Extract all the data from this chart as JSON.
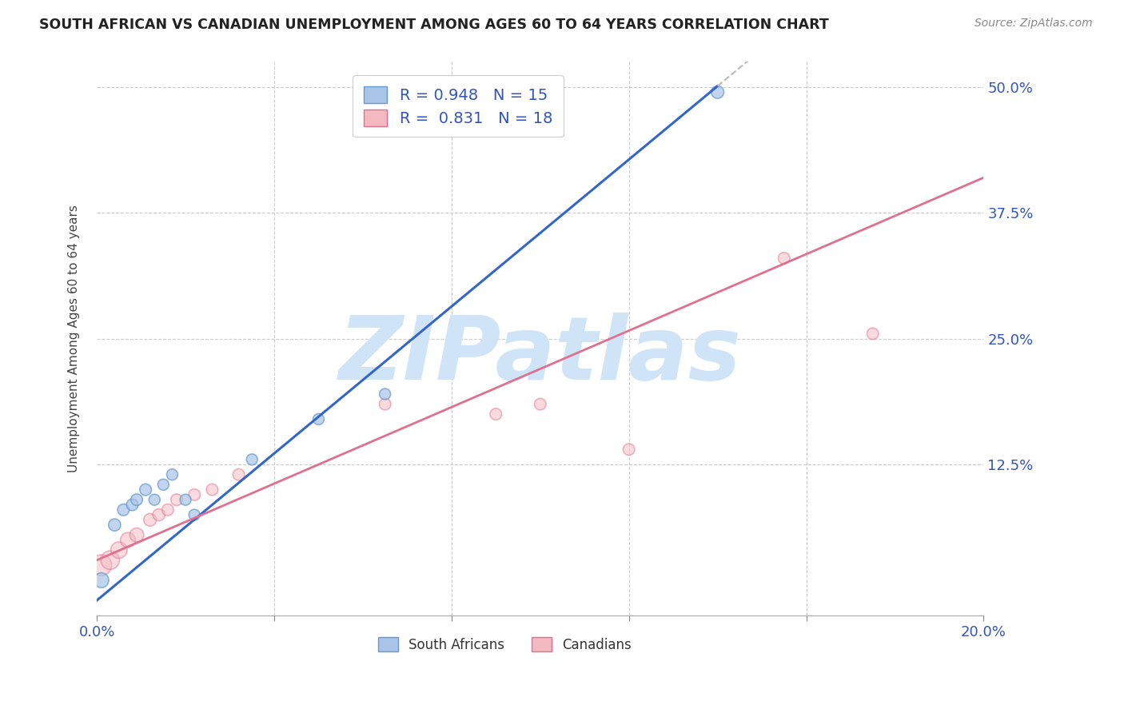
{
  "title": "SOUTH AFRICAN VS CANADIAN UNEMPLOYMENT AMONG AGES 60 TO 64 YEARS CORRELATION CHART",
  "source": "Source: ZipAtlas.com",
  "ylabel": "Unemployment Among Ages 60 to 64 years",
  "xlim": [
    0.0,
    0.2
  ],
  "ylim": [
    -0.025,
    0.525
  ],
  "xticks": [
    0.0,
    0.04,
    0.08,
    0.12,
    0.16,
    0.2
  ],
  "xticklabels": [
    "0.0%",
    "",
    "",
    "",
    "",
    "20.0%"
  ],
  "yticks": [
    0.0,
    0.125,
    0.25,
    0.375,
    0.5
  ],
  "yticklabels": [
    "",
    "12.5%",
    "25.0%",
    "37.5%",
    "50.0%"
  ],
  "blue_fill": "#aac4e8",
  "blue_edge": "#6699cc",
  "pink_fill": "#f4b8c1",
  "pink_edge": "#e07090",
  "line_blue": "#3366cc",
  "line_pink": "#e07090",
  "line_dashed": "#bbbbbb",
  "watermark_text": "ZIPatlas",
  "watermark_color": "#d0e4f7",
  "legend_r_blue": "0.948",
  "legend_n_blue": "15",
  "legend_r_pink": "0.831",
  "legend_n_pink": "18",
  "legend_label_blue": "South Africans",
  "legend_label_pink": "Canadians",
  "sa_x": [
    0.001,
    0.004,
    0.006,
    0.008,
    0.009,
    0.011,
    0.013,
    0.015,
    0.017,
    0.02,
    0.022,
    0.035,
    0.05,
    0.065,
    0.14
  ],
  "sa_y": [
    0.01,
    0.065,
    0.08,
    0.085,
    0.09,
    0.1,
    0.09,
    0.105,
    0.115,
    0.09,
    0.075,
    0.13,
    0.17,
    0.195,
    0.495
  ],
  "sa_sizes": [
    180,
    120,
    110,
    110,
    110,
    110,
    100,
    100,
    100,
    100,
    100,
    100,
    100,
    100,
    130
  ],
  "ca_x": [
    0.001,
    0.003,
    0.005,
    0.007,
    0.009,
    0.012,
    0.014,
    0.016,
    0.018,
    0.022,
    0.026,
    0.032,
    0.065,
    0.09,
    0.1,
    0.12,
    0.155,
    0.175
  ],
  "ca_y": [
    0.025,
    0.03,
    0.04,
    0.05,
    0.055,
    0.07,
    0.075,
    0.08,
    0.09,
    0.095,
    0.1,
    0.115,
    0.185,
    0.175,
    0.185,
    0.14,
    0.33,
    0.255
  ],
  "ca_sizes": [
    350,
    280,
    220,
    180,
    160,
    130,
    120,
    110,
    110,
    110,
    110,
    110,
    110,
    110,
    110,
    110,
    110,
    110
  ],
  "blue_line_x0": 0.0,
  "blue_line_y0": -0.01,
  "blue_line_slope": 3.65,
  "blue_line_solid_end": 0.14,
  "pink_line_x0": 0.0,
  "pink_line_y0": 0.03,
  "pink_line_slope": 1.9
}
